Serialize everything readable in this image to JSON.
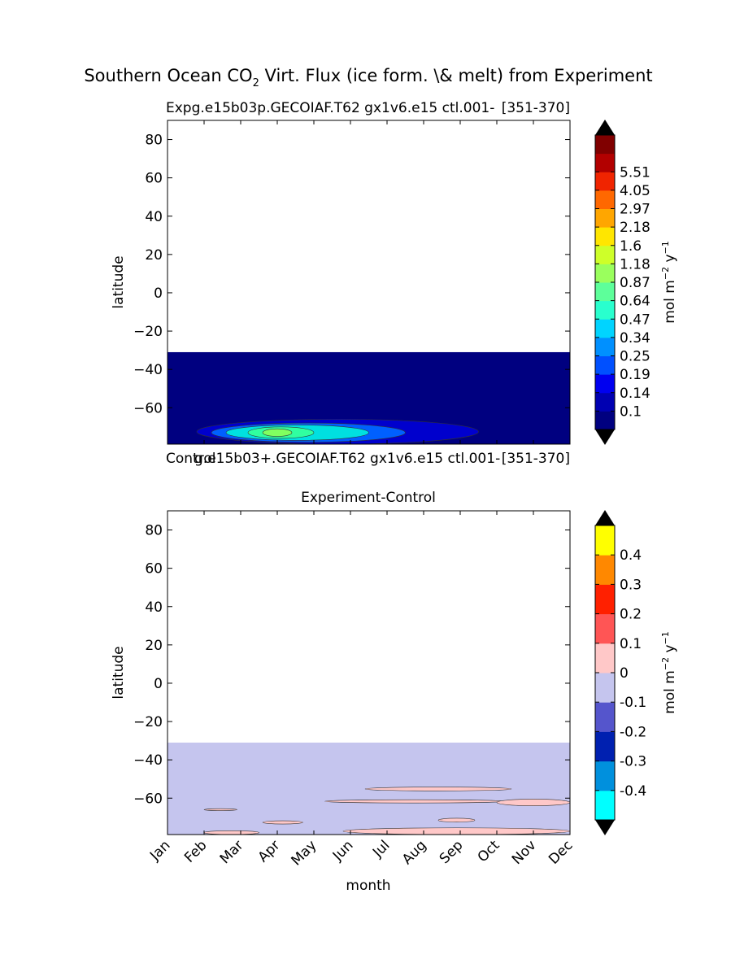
{
  "figure": {
    "title_main": "Southern Ocean CO",
    "title_sub": "2",
    "title_rest": " Virt. Flux (ice form. \\& melt) from Experiment"
  },
  "chart_data": [
    {
      "type": "heatmap",
      "id": "experiment",
      "title_left": "Expg.e15b03p.GECOIAF.T62 gx1v6.e15 ctl.001-",
      "title_right": "[351-370]",
      "ylabel": "latitude",
      "ylim": [
        -79,
        90
      ],
      "yticks": [
        80,
        60,
        40,
        20,
        0,
        -20,
        -40,
        -60
      ],
      "ytick_labels": [
        "80",
        "60",
        "40",
        "20",
        "0",
        "−20",
        "−40",
        "−60"
      ],
      "xlim": [
        0,
        11
      ],
      "data_lat_range": [
        -79,
        -31
      ],
      "background_color": "#000080",
      "contours": [
        {
          "month_range": [
            0.8,
            8.5
          ],
          "lat_range": [
            -79,
            -66
          ],
          "color": "#0000cd"
        },
        {
          "month_range": [
            1.2,
            6.5
          ],
          "lat_range": [
            -78,
            -68
          ],
          "color": "#0060ff"
        },
        {
          "month_range": [
            1.6,
            5.5
          ],
          "lat_range": [
            -77,
            -69
          ],
          "color": "#00e0e0"
        },
        {
          "month_range": [
            2.2,
            4.0
          ],
          "lat_range": [
            -76,
            -70
          ],
          "color": "#30ffa0"
        },
        {
          "month_range": [
            2.6,
            3.4
          ],
          "lat_range": [
            -75,
            -71
          ],
          "color": "#80ff60"
        }
      ],
      "colorbar": {
        "label": "mol m",
        "label_exp": "−2",
        "label_unit": " y",
        "label_unit_exp": "−1",
        "boundaries": [
          "",
          "0.1",
          "0.14",
          "0.19",
          "0.25",
          "0.34",
          "0.47",
          "0.64",
          "0.87",
          "1.18",
          "1.6",
          "2.18",
          "2.97",
          "4.05",
          "5.51",
          ""
        ],
        "colors": [
          "#000080",
          "#0000b2",
          "#0000f0",
          "#0050ff",
          "#0090ff",
          "#00d4ff",
          "#29ffce",
          "#5dff9a",
          "#9aff5d",
          "#ceff29",
          "#ffe600",
          "#ffa600",
          "#ff6800",
          "#f02400",
          "#b20000",
          "#800000"
        ],
        "under_color": "#000000",
        "over_color": "#000000"
      }
    },
    {
      "type": "heatmap",
      "id": "difference",
      "title_left": "",
      "title_right": "",
      "title": "Experiment-Control",
      "ylabel": "latitude",
      "ylim": [
        -79,
        90
      ],
      "yticks": [
        80,
        60,
        40,
        20,
        0,
        -20,
        -40,
        -60
      ],
      "ytick_labels": [
        "80",
        "60",
        "40",
        "20",
        "0",
        "−20",
        "−40",
        "−60"
      ],
      "xlim": [
        0,
        11
      ],
      "xticks": [
        "Jan",
        "Feb",
        "Mar",
        "Apr",
        "May",
        "Jun",
        "Jul",
        "Aug",
        "Sep",
        "Oct",
        "Nov",
        "Dec"
      ],
      "xlabel": "month",
      "data_lat_range": [
        -79,
        -31
      ],
      "background_color": "#c5c5ee",
      "contours": [
        {
          "month_range": [
            5.4,
            9.4
          ],
          "lat_range": [
            -56.2,
            -54.2
          ],
          "color": "#ffc8c8"
        },
        {
          "month_range": [
            4.3,
            9.2
          ],
          "lat_range": [
            -62.5,
            -60.8
          ],
          "color": "#ffc8c8"
        },
        {
          "month_range": [
            9.0,
            11.0
          ],
          "lat_range": [
            -64.0,
            -60.5
          ],
          "color": "#ffc8c8"
        },
        {
          "month_range": [
            1.0,
            1.9
          ],
          "lat_range": [
            -66.5,
            -65.5
          ],
          "color": "#ffc8c8"
        },
        {
          "month_range": [
            2.6,
            3.7
          ],
          "lat_range": [
            -73.5,
            -71.8
          ],
          "color": "#ffc8c8"
        },
        {
          "month_range": [
            7.4,
            8.4
          ],
          "lat_range": [
            -72.5,
            -70.5
          ],
          "color": "#ffc8c8"
        },
        {
          "month_range": [
            4.8,
            11.0
          ],
          "lat_range": [
            -79.0,
            -75.5
          ],
          "color": "#ffc8c8"
        },
        {
          "month_range": [
            1.0,
            2.5
          ],
          "lat_range": [
            -79.0,
            -77.0
          ],
          "color": "#ffc8c8"
        }
      ],
      "colorbar": {
        "label": "mol m",
        "label_exp": "−2",
        "label_unit": " y",
        "label_unit_exp": "−1",
        "boundaries": [
          "",
          "-0.4",
          "-0.3",
          "-0.2",
          "-0.1",
          "0",
          "0.1",
          "0.2",
          "0.3",
          "0.4",
          ""
        ],
        "colors": [
          "#00ffff",
          "#0090dd",
          "#0020b0",
          "#5555cc",
          "#c5c5ee",
          "#ffc8c8",
          "#ff5555",
          "#ff2000",
          "#ff8800",
          "#ffff00"
        ],
        "under_color": "#000000",
        "over_color": "#000000"
      }
    }
  ],
  "overlay": {
    "control_left": "Control",
    "control_mid": "g.e15b03+.GECOIAF.T62 gx1v6.e15 ctl.001-",
    "control_right": "[351-370]"
  }
}
